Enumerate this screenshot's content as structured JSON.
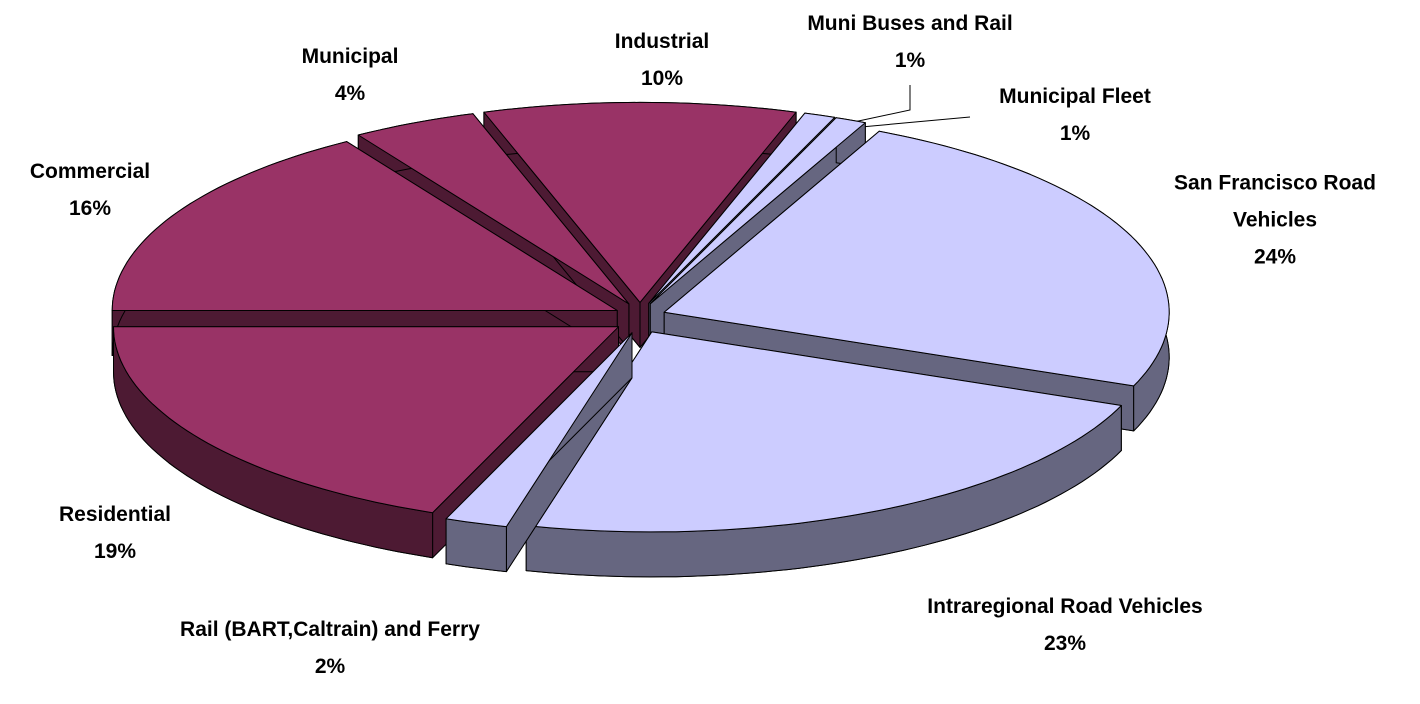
{
  "chart_data": {
    "type": "pie3d",
    "categories": [
      "Commercial",
      "Municipal",
      "Industrial",
      "Muni Buses and Rail",
      "Municipal Fleet",
      "San Francisco Road Vehicles",
      "Intraregional Road Vehicles",
      "Rail (BART,Caltrain) and Ferry",
      "Residential"
    ],
    "values": [
      16,
      4,
      10,
      1,
      1,
      24,
      23,
      2,
      19
    ],
    "value_labels": [
      "16%",
      "4%",
      "10%",
      "1%",
      "1%",
      "24%",
      "23%",
      "2%",
      "19%"
    ],
    "colors": [
      "#993366",
      "#993366",
      "#993366",
      "#ccccff",
      "#ccccff",
      "#ccccff",
      "#ccccff",
      "#ccccff",
      "#993366"
    ]
  }
}
